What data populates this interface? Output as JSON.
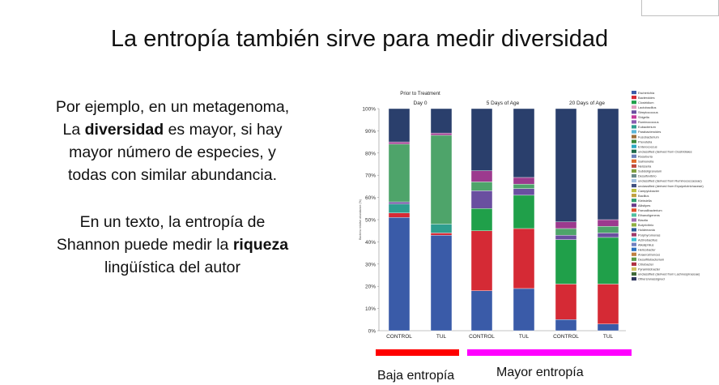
{
  "slide": {
    "title": "La entropía también sirve para medir diversidad",
    "para1": {
      "line1": "Por ejemplo, en un metagenoma,",
      "line2_pre": "La ",
      "line2_bold": "diversidad",
      "line2_post": " es mayor, si hay",
      "line3": "mayor número de especies, y",
      "line4": "todas con similar abundancia."
    },
    "para2": {
      "line1": "En un texto, la entropía de",
      "line2_pre": "Shannon puede medir la ",
      "line2_bold": "riqueza",
      "line3": "lingüística del autor"
    },
    "label_low": "Baja entropía",
    "label_high": "Mayor entropía",
    "colors": {
      "low_bar": "#ff0000",
      "high_bar": "#ff00ff"
    }
  },
  "chart_data": {
    "type": "bar",
    "stacked": true,
    "ylabel": "Bacteria relative abundance (%)",
    "ylim": [
      0,
      100
    ],
    "yticks": [
      "0%",
      "10%",
      "20%",
      "30%",
      "40%",
      "50%",
      "60%",
      "70%",
      "80%",
      "90%",
      "100%"
    ],
    "groups": [
      {
        "title_top": "Prior to Treatment",
        "title": "Day 0"
      },
      {
        "title_top": "",
        "title": "5 Days of Age"
      },
      {
        "title_top": "",
        "title": "20 Days of Age"
      }
    ],
    "categories": [
      "CONTROL",
      "TUL",
      "CONTROL",
      "TUL",
      "CONTROL",
      "TUL"
    ],
    "legend": [
      "Escherichia",
      "Bacteroides",
      "Clostridium",
      "Lactobacillus",
      "Streptococcus",
      "Shigella",
      "Ruminococcus",
      "Eubacterium",
      "Parabacteroides",
      "Fusobacterium",
      "Prevotella",
      "Enterococcus",
      "unclassified (derived from Clostridiales",
      "Roseburia",
      "Salmonella",
      "Neisseria",
      "Subdoligranulum",
      "Desulfovibrio",
      "unclassified (derived from Ruminococcaceae)",
      "unclassified (derived from Erysipelotrichaceae)",
      "Campylobacter",
      "Bacillus",
      "Klebsiella",
      "Allistipes",
      "Faecalibacterium",
      "Ethanoligenens",
      "Blautia",
      "Butyrivibrio",
      "Holdemania",
      "Porphyromonas",
      "Actinobacillus",
      "Alkaliphilus",
      "Helicobacter",
      "Anaerostruncus",
      "Desulfitobacterium",
      "Citrobacter",
      "Pyramidobacter",
      "unclassified (derived from Lachnospiraceae)",
      "Others/unassigned"
    ],
    "series": [
      {
        "name": "Escherichia",
        "values": [
          51,
          43,
          18,
          19,
          5,
          3
        ]
      },
      {
        "name": "Bacteroides",
        "values": [
          2,
          1,
          27,
          27,
          16,
          18
        ]
      },
      {
        "name": "Clostridium",
        "values": [
          0,
          0,
          10,
          15,
          20,
          21
        ]
      },
      {
        "name": "Enterococcus",
        "values": [
          4,
          4,
          0,
          0,
          0,
          0
        ]
      },
      {
        "name": "Prevotella",
        "values": [
          1,
          0,
          8,
          3,
          2,
          2
        ]
      },
      {
        "name": "Streptococcus",
        "values": [
          26,
          40,
          4,
          2,
          3,
          3
        ]
      },
      {
        "name": "Ruminococcus",
        "values": [
          1,
          1,
          5,
          3,
          3,
          3
        ]
      },
      {
        "name": "Others/unassigned",
        "values": [
          15,
          11,
          28,
          31,
          51,
          50
        ]
      }
    ]
  }
}
